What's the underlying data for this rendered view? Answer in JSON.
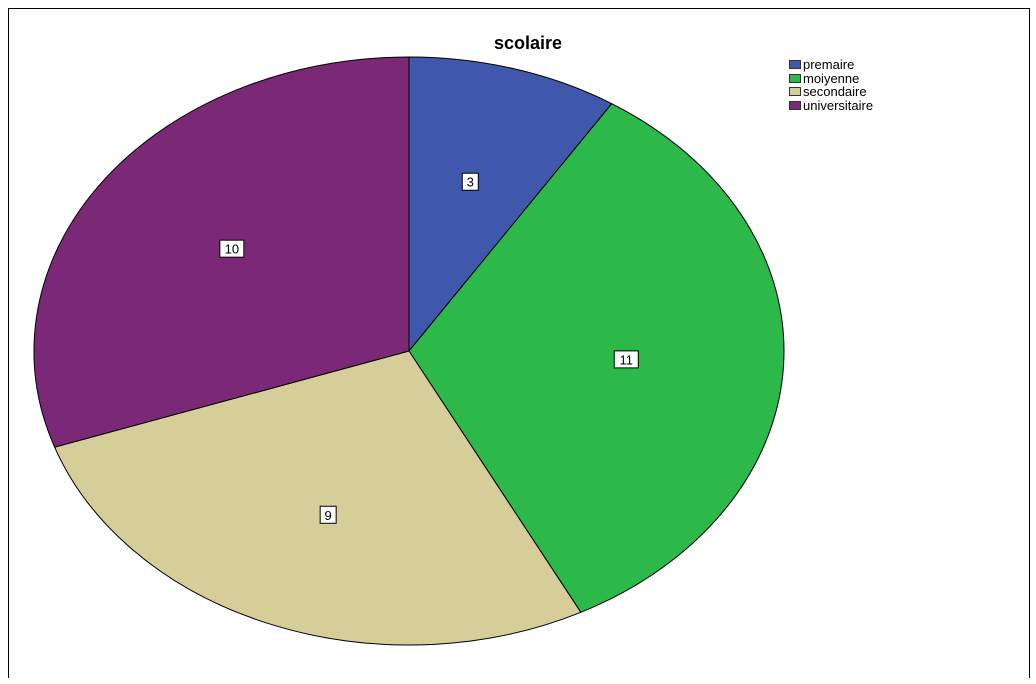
{
  "chart_data": {
    "type": "pie",
    "title": "scolaire",
    "categories": [
      "premaire",
      "moiyenne",
      "secondaire",
      "universitaire"
    ],
    "values": [
      3,
      11,
      9,
      10
    ],
    "colors": [
      "#3F58AB",
      "#2DB84A",
      "#D5CE99",
      "#7B2977"
    ],
    "legend_position": "top-right",
    "data_labels": true,
    "start": "12 o'clock",
    "direction": "clockwise"
  }
}
